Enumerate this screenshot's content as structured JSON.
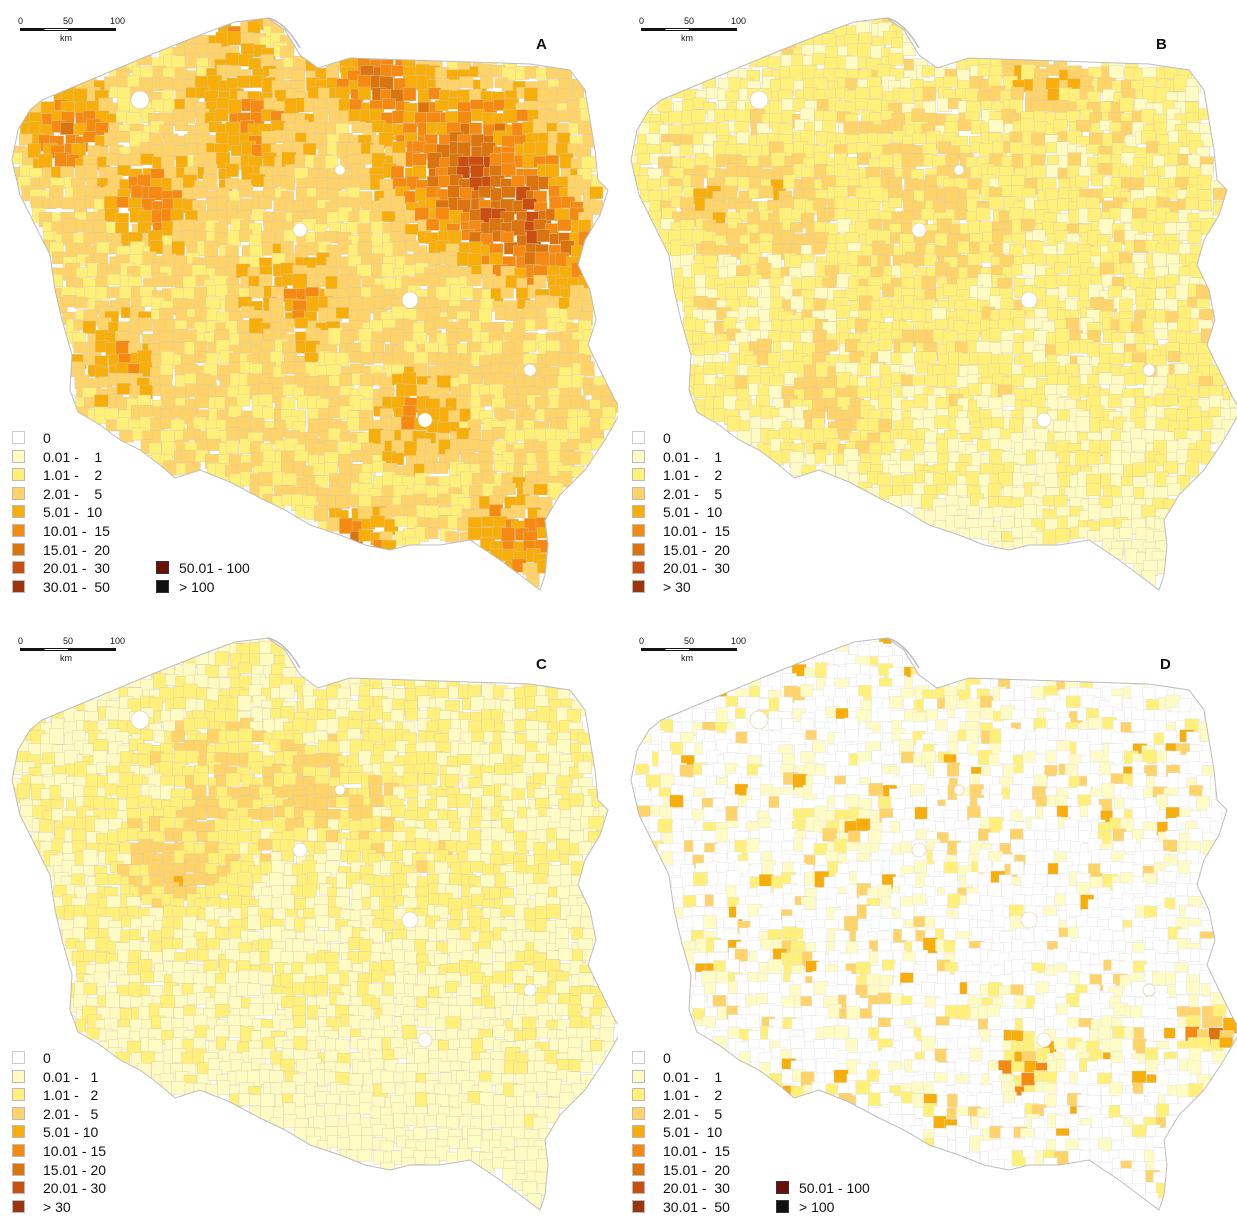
{
  "palette": {
    "c0": "#ffffff",
    "c1": "#fffbc4",
    "c2": "#fff07a",
    "c3": "#fdd36a",
    "c4": "#f7ae0b",
    "c5": "#f58a12",
    "c6": "#d9740f",
    "c7": "#c94e12",
    "c8": "#9b3510",
    "c9": "#6b1006",
    "c10": "#111111",
    "border": "#d9c9a8",
    "outline": "#bdbdbd"
  },
  "scalebar": {
    "t0": "0",
    "t1": "50",
    "t2": "100",
    "unit": "km"
  },
  "panels": [
    {
      "id": "A",
      "letter": "A",
      "legend": [
        "0",
        "0.01 -    1",
        "1.01 -    2",
        "2.01 -    5",
        "5.01 -  10",
        "10.01 -  15",
        "15.01 -  20",
        "20.01 -  30",
        "30.01 -  50"
      ],
      "legend2": [
        "50.01 - 100",
        "> 100"
      ],
      "intensity": "high"
    },
    {
      "id": "B",
      "letter": "B",
      "legend": [
        "0",
        "0.01 -    1",
        "1.01 -    2",
        "2.01 -    5",
        "5.01 -  10",
        "10.01 -  15",
        "15.01 -  20",
        "20.01 -  30",
        "> 30"
      ],
      "legend2": [],
      "intensity": "medium"
    },
    {
      "id": "C",
      "letter": "C",
      "legend": [
        "0",
        "0.01 -   1",
        "1.01 -   2",
        "2.01 -   5",
        "5.01 - 10",
        "10.01 - 15",
        "15.01 - 20",
        "20.01 - 30",
        "> 30"
      ],
      "legend2": [],
      "intensity": "low"
    },
    {
      "id": "D",
      "letter": "D",
      "legend": [
        "0",
        "0.01 -    1",
        "1.01 -    2",
        "2.01 -    5",
        "5.01 -  10",
        "10.01 -  15",
        "15.01 -  20",
        "20.01 -  30",
        "30.01 -  50"
      ],
      "legend2": [
        "50.01 - 100",
        "> 100"
      ],
      "intensity": "sparse"
    }
  ]
}
